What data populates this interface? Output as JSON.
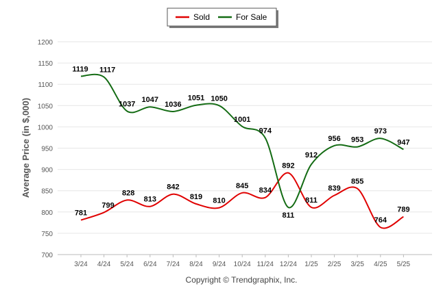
{
  "chart_data": {
    "type": "line",
    "categories": [
      "3/24",
      "4/24",
      "5/24",
      "6/24",
      "7/24",
      "8/24",
      "9/24",
      "10/24",
      "11/24",
      "12/24",
      "1/25",
      "2/25",
      "3/25",
      "4/25",
      "5/25"
    ],
    "series": [
      {
        "name": "Sold",
        "color": "#e00000",
        "values": [
          781,
          799,
          828,
          813,
          842,
          819,
          810,
          845,
          834,
          892,
          811,
          839,
          855,
          764,
          789
        ]
      },
      {
        "name": "For Sale",
        "color": "#136b13",
        "values": [
          1119,
          1117,
          1037,
          1047,
          1036,
          1051,
          1050,
          1001,
          974,
          811,
          912,
          956,
          953,
          973,
          947
        ]
      }
    ],
    "ylabel": "Average Price (in $,000)",
    "ylim": [
      700,
      1200
    ],
    "yticks": [
      700,
      750,
      800,
      850,
      900,
      950,
      1000,
      1050,
      1100,
      1150,
      1200
    ],
    "grid": true,
    "legend": "top-center",
    "credit": "Copyright © Trendgraphix, Inc."
  }
}
